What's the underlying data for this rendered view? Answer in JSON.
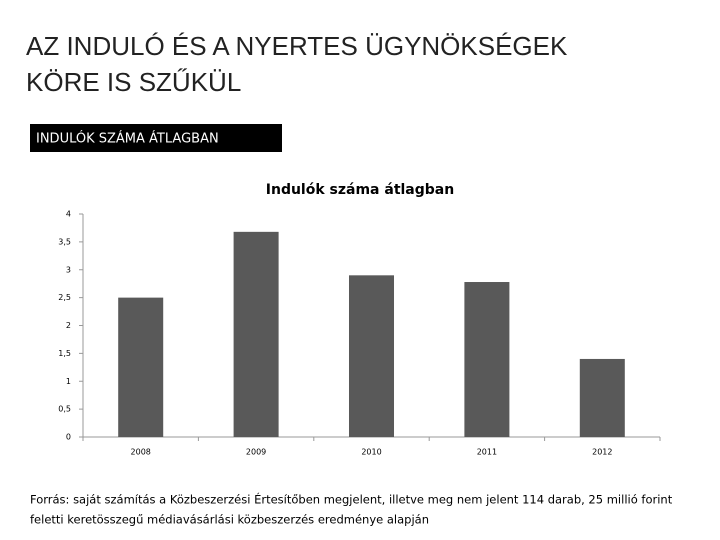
{
  "slide": {
    "title": [
      "AZ INDULÓ ÉS A NYERTES ÜGYNÖKSÉGEK",
      "KÖRE IS SZŰKÜL"
    ],
    "label": "INDULÓK SZÁMA ÁTLAGBAN",
    "source": [
      "Forrás: saját számítás a Közbeszerzési Értesítőben megjelent, illetve meg nem jelent 114 darab, 25 millió forint",
      "feletti keretösszegű médiavásárlási közbeszerzés eredménye alapján"
    ]
  },
  "chart_data": {
    "type": "bar",
    "title": "Indulók száma átlagban",
    "categories": [
      "2008",
      "2009",
      "2010",
      "2011",
      "2012"
    ],
    "values": [
      2.5,
      3.68,
      2.9,
      2.78,
      1.4
    ],
    "color": "#595959",
    "ylim": [
      0,
      4
    ],
    "yticks": [
      0,
      {
        "value": 0.5,
        "label": "0,5"
      },
      1,
      {
        "value": 1.5,
        "label": "1,5"
      },
      2,
      {
        "value": 2.5,
        "label": "2,5"
      },
      3,
      {
        "value": 3.5,
        "label": "3,5"
      },
      4
    ],
    "grid": false
  }
}
